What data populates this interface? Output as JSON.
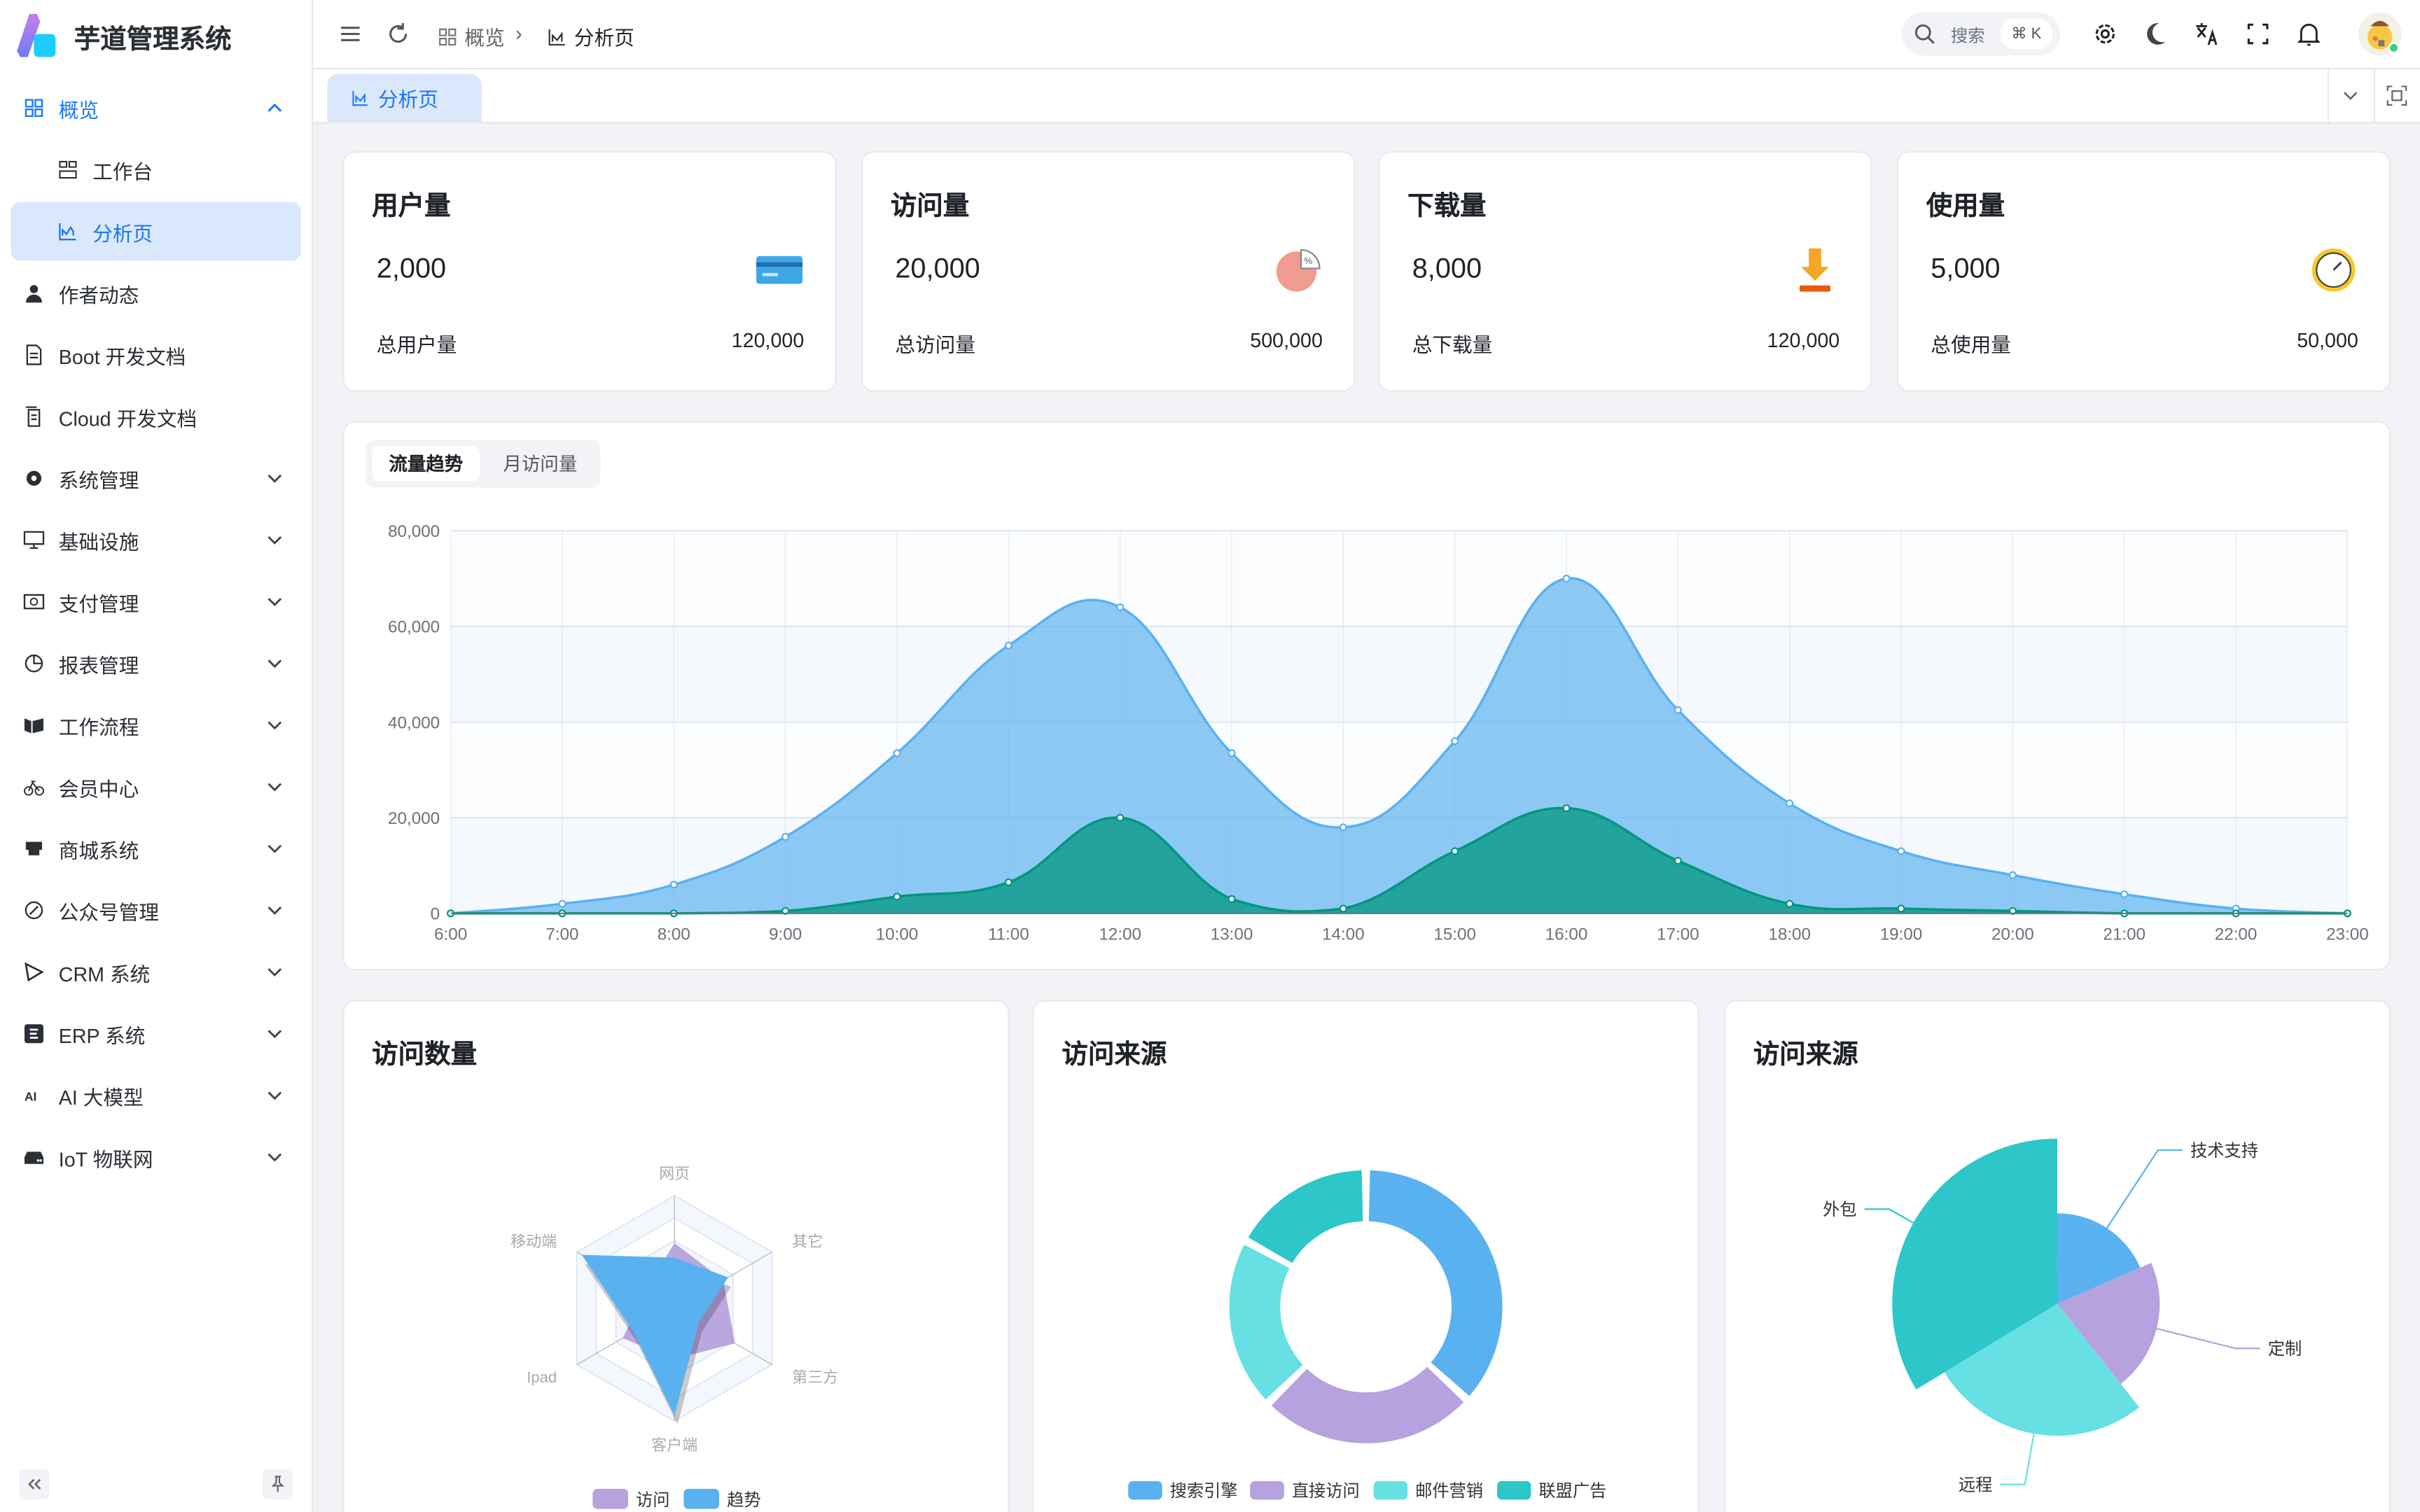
{
  "app": {
    "title": "芋道管理系统"
  },
  "sidebar": {
    "items": [
      {
        "label": "概览",
        "icon": "dashboard",
        "expandable": true,
        "expanded": true,
        "children": [
          {
            "label": "工作台",
            "icon": "workbench"
          },
          {
            "label": "分析页",
            "icon": "area-chart",
            "active": true
          }
        ]
      },
      {
        "label": "作者动态",
        "icon": "user"
      },
      {
        "label": "Boot 开发文档",
        "icon": "document"
      },
      {
        "label": "Cloud 开发文档",
        "icon": "documents"
      },
      {
        "label": "系统管理",
        "icon": "gear",
        "expandable": true
      },
      {
        "label": "基础设施",
        "icon": "monitor",
        "expandable": true
      },
      {
        "label": "支付管理",
        "icon": "payment",
        "expandable": true
      },
      {
        "label": "报表管理",
        "icon": "pie-chart",
        "expandable": true
      },
      {
        "label": "工作流程",
        "icon": "workflow",
        "expandable": true
      },
      {
        "label": "会员中心",
        "icon": "bicycle",
        "expandable": true
      },
      {
        "label": "商城系统",
        "icon": "shop",
        "expandable": true
      },
      {
        "label": "公众号管理",
        "icon": "compass",
        "expandable": true
      },
      {
        "label": "CRM 系统",
        "icon": "crm",
        "expandable": true
      },
      {
        "label": "ERP 系统",
        "icon": "erp",
        "expandable": true
      },
      {
        "label": "AI 大模型",
        "icon": "ai",
        "expandable": true
      },
      {
        "label": "IoT 物联网",
        "icon": "server",
        "expandable": true
      }
    ]
  },
  "header": {
    "breadcrumb": [
      {
        "label": "概览",
        "icon": "dashboard"
      },
      {
        "label": "分析页",
        "icon": "area-chart"
      }
    ],
    "search_placeholder": "搜索",
    "search_shortcut": "⌘ K"
  },
  "tabs": [
    {
      "label": "分析页",
      "icon": "area-chart",
      "active": true
    }
  ],
  "stats": [
    {
      "title": "用户量",
      "value": "2,000",
      "footer_label": "总用户量",
      "footer_value": "120,000",
      "icon": "card"
    },
    {
      "title": "访问量",
      "value": "20,000",
      "footer_label": "总访问量",
      "footer_value": "500,000",
      "icon": "pie"
    },
    {
      "title": "下载量",
      "value": "8,000",
      "footer_label": "总下载量",
      "footer_value": "120,000",
      "icon": "download"
    },
    {
      "title": "使用量",
      "value": "5,000",
      "footer_label": "总使用量",
      "footer_value": "50,000",
      "icon": "clock"
    }
  ],
  "trend": {
    "tabs": [
      {
        "label": "流量趋势",
        "active": true
      },
      {
        "label": "月访问量"
      }
    ]
  },
  "chart_data": [
    {
      "type": "area",
      "x": [
        "6:00",
        "7:00",
        "8:00",
        "9:00",
        "10:00",
        "11:00",
        "12:00",
        "13:00",
        "14:00",
        "15:00",
        "16:00",
        "17:00",
        "18:00",
        "19:00",
        "20:00",
        "21:00",
        "22:00",
        "23:00"
      ],
      "series": [
        {
          "values": [
            0,
            2000,
            6000,
            16000,
            33500,
            56000,
            64000,
            33500,
            18000,
            36000,
            70000,
            42500,
            23000,
            13000,
            8000,
            4000,
            1000,
            0
          ],
          "color": "#5ab1ef"
        },
        {
          "values": [
            0,
            0,
            0,
            500,
            3500,
            6500,
            20000,
            3000,
            1000,
            13000,
            22000,
            11000,
            2000,
            1000,
            500,
            0,
            0,
            0
          ],
          "color": "#019680"
        }
      ],
      "yticks": [
        "0",
        "20,000",
        "40,000",
        "60,000",
        "80,000"
      ],
      "ylim": [
        0,
        80000
      ],
      "grid": true,
      "smooth": true
    },
    {
      "type": "radar",
      "title": "访问数量",
      "indicators": [
        "网页",
        "移动端",
        "Ipad",
        "客户端",
        "第三方",
        "其它"
      ],
      "max": 100,
      "series": [
        {
          "name": "访问",
          "values": [
            58,
            30,
            53,
            45,
            62,
            50
          ],
          "color": "#b6a2de"
        },
        {
          "name": "趋势",
          "values": [
            45,
            95,
            42,
            95,
            25,
            55
          ],
          "color": "#5ab1ef"
        }
      ],
      "legend": "bottom"
    },
    {
      "type": "pie",
      "title": "访问来源",
      "donut": true,
      "slices": [
        {
          "name": "搜索引擎",
          "value": 1048,
          "color": "#5ab1ef"
        },
        {
          "name": "直接访问",
          "value": 735,
          "color": "#b6a2de"
        },
        {
          "name": "邮件营销",
          "value": 580,
          "color": "#67e0e3"
        },
        {
          "name": "联盟广告",
          "value": 484,
          "color": "#2ec7c9"
        }
      ],
      "legend": "bottom"
    },
    {
      "type": "pie",
      "title": "访问来源",
      "rose": "radius",
      "slices": [
        {
          "name": "技术支持",
          "value": 274,
          "color": "#5ab1ef"
        },
        {
          "name": "定制",
          "value": 310,
          "color": "#b6a2de"
        },
        {
          "name": "远程",
          "value": 400,
          "color": "#67e0e3"
        },
        {
          "name": "外包",
          "value": 500,
          "color": "#2ec7c9"
        }
      ]
    }
  ]
}
